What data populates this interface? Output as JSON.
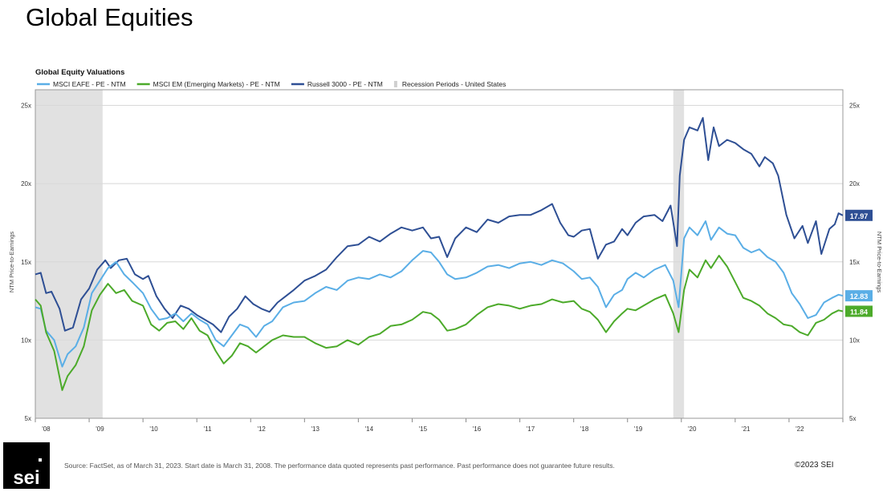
{
  "slide_title": "Global Equities",
  "footer": {
    "source": "Source: FactSet, as of March 31, 2023. Start date is March 31, 2008. The performance data quoted represents past performance. Past performance does not guarantee future results.",
    "copyright": "©2023 SEI",
    "logo_text": "sei"
  },
  "colors": {
    "eafe": "#5aaee6",
    "em": "#4caa2a",
    "russell": "#2e4f94",
    "recession": "#e1e1e1"
  },
  "chart_data": {
    "type": "line",
    "title": "Global Equity Valuations",
    "xlabel": "",
    "ylabel": "NTM Price-to-Earnings",
    "ylabel_right": "NTM Price-to-Earnings",
    "ylim": [
      5,
      26
    ],
    "yticks": [
      5,
      10,
      15,
      20,
      25
    ],
    "ytick_labels": [
      "5x",
      "10x",
      "15x",
      "20x",
      "25x"
    ],
    "xlim": [
      2008.0,
      2023.0
    ],
    "xticks": [
      2008.5,
      2009.5,
      2010.5,
      2011.5,
      2012.5,
      2013.5,
      2014.5,
      2015.5,
      2016.5,
      2017.5,
      2018.5,
      2019.5,
      2020.5,
      2021.5,
      2022.5
    ],
    "xtick_labels": [
      "'08",
      "'09",
      "'10",
      "'11",
      "'12",
      "'13",
      "'14",
      "'15",
      "'16",
      "'17",
      "'18",
      "'19",
      "'20",
      "'21",
      "'22"
    ],
    "grid": true,
    "legend_position": "top-left",
    "recessions": [
      [
        2008.0,
        2009.25
      ],
      [
        2019.85,
        2020.05
      ]
    ],
    "last_value_labels": [
      {
        "series": "Russell 3000 - PE - NTM",
        "text": "17.97"
      },
      {
        "series": "MSCI EAFE - PE - NTM",
        "text": "12.83"
      },
      {
        "series": "MSCI EM (Emerging Markets) - PE - NTM",
        "text": "11.84"
      }
    ],
    "legend": [
      {
        "label": "MSCI EAFE - PE - NTM",
        "color": "#5aaee6"
      },
      {
        "label": "MSCI EM (Emerging Markets) - PE - NTM",
        "color": "#4caa2a"
      },
      {
        "label": "Russell 3000 - PE - NTM",
        "color": "#2e4f94"
      },
      {
        "label": "Recession Periods - United States",
        "color": "#d0d0d0"
      }
    ],
    "series": [
      {
        "name": "Russell 3000 - PE - NTM",
        "color": "#2e4f94",
        "x": [
          2008.0,
          2008.1,
          2008.2,
          2008.3,
          2008.45,
          2008.55,
          2008.7,
          2008.85,
          2009.0,
          2009.15,
          2009.3,
          2009.4,
          2009.55,
          2009.7,
          2009.85,
          2010.0,
          2010.1,
          2010.25,
          2010.4,
          2010.55,
          2010.7,
          2010.85,
          2011.0,
          2011.15,
          2011.3,
          2011.45,
          2011.6,
          2011.75,
          2011.9,
          2012.05,
          2012.2,
          2012.35,
          2012.5,
          2012.65,
          2012.8,
          2013.0,
          2013.2,
          2013.4,
          2013.6,
          2013.8,
          2014.0,
          2014.2,
          2014.4,
          2014.6,
          2014.8,
          2015.0,
          2015.2,
          2015.35,
          2015.5,
          2015.65,
          2015.8,
          2016.0,
          2016.2,
          2016.4,
          2016.6,
          2016.8,
          2017.0,
          2017.2,
          2017.4,
          2017.6,
          2017.75,
          2017.9,
          2018.0,
          2018.15,
          2018.3,
          2018.45,
          2018.6,
          2018.75,
          2018.9,
          2019.0,
          2019.15,
          2019.3,
          2019.5,
          2019.65,
          2019.8,
          2019.92,
          2019.97,
          2020.05,
          2020.15,
          2020.3,
          2020.4,
          2020.5,
          2020.6,
          2020.7,
          2020.85,
          2021.0,
          2021.15,
          2021.3,
          2021.45,
          2021.55,
          2021.7,
          2021.8,
          2021.95,
          2022.1,
          2022.25,
          2022.35,
          2022.5,
          2022.6,
          2022.75,
          2022.85,
          2022.92,
          2023.0
        ],
        "values": [
          14.2,
          14.3,
          13.0,
          13.1,
          12.0,
          10.6,
          10.8,
          12.6,
          13.3,
          14.5,
          15.1,
          14.6,
          15.1,
          15.2,
          14.2,
          13.9,
          14.1,
          12.8,
          12.0,
          11.4,
          12.2,
          12.0,
          11.6,
          11.3,
          11.0,
          10.5,
          11.5,
          12.0,
          12.8,
          12.3,
          12.0,
          11.8,
          12.4,
          12.8,
          13.2,
          13.8,
          14.1,
          14.5,
          15.3,
          16.0,
          16.1,
          16.6,
          16.3,
          16.8,
          17.2,
          17.0,
          17.2,
          16.5,
          16.6,
          15.3,
          16.5,
          17.2,
          16.9,
          17.7,
          17.5,
          17.9,
          18.0,
          18.0,
          18.3,
          18.7,
          17.5,
          16.7,
          16.6,
          17.0,
          17.1,
          15.2,
          16.1,
          16.3,
          17.1,
          16.7,
          17.5,
          17.9,
          18.0,
          17.6,
          18.6,
          16.0,
          20.5,
          22.8,
          23.6,
          23.4,
          24.2,
          21.5,
          23.6,
          22.4,
          22.8,
          22.6,
          22.2,
          21.9,
          21.1,
          21.7,
          21.3,
          20.5,
          18.0,
          16.5,
          17.3,
          16.2,
          17.6,
          15.5,
          17.1,
          17.4,
          18.1,
          17.97
        ]
      },
      {
        "name": "MSCI EAFE - PE - NTM",
        "color": "#5aaee6",
        "x": [
          2008.0,
          2008.1,
          2008.2,
          2008.35,
          2008.5,
          2008.6,
          2008.75,
          2008.9,
          2009.05,
          2009.2,
          2009.35,
          2009.5,
          2009.65,
          2009.8,
          2010.0,
          2010.15,
          2010.3,
          2010.45,
          2010.6,
          2010.75,
          2010.9,
          2011.05,
          2011.2,
          2011.35,
          2011.5,
          2011.65,
          2011.8,
          2011.95,
          2012.1,
          2012.25,
          2012.4,
          2012.6,
          2012.8,
          2013.0,
          2013.2,
          2013.4,
          2013.6,
          2013.8,
          2014.0,
          2014.2,
          2014.4,
          2014.6,
          2014.8,
          2015.0,
          2015.2,
          2015.35,
          2015.5,
          2015.65,
          2015.8,
          2016.0,
          2016.2,
          2016.4,
          2016.6,
          2016.8,
          2017.0,
          2017.2,
          2017.4,
          2017.6,
          2017.8,
          2018.0,
          2018.15,
          2018.3,
          2018.45,
          2018.6,
          2018.75,
          2018.9,
          2019.0,
          2019.15,
          2019.3,
          2019.5,
          2019.7,
          2019.85,
          2019.95,
          2020.05,
          2020.15,
          2020.3,
          2020.45,
          2020.55,
          2020.7,
          2020.85,
          2021.0,
          2021.15,
          2021.3,
          2021.45,
          2021.6,
          2021.75,
          2021.9,
          2022.05,
          2022.2,
          2022.35,
          2022.5,
          2022.65,
          2022.8,
          2022.92,
          2023.0
        ],
        "values": [
          12.1,
          12.0,
          10.6,
          10.0,
          8.3,
          9.1,
          9.6,
          10.8,
          13.0,
          13.8,
          14.6,
          15.0,
          14.2,
          13.7,
          13.0,
          12.0,
          11.3,
          11.4,
          11.7,
          11.2,
          11.7,
          11.3,
          11.0,
          10.0,
          9.6,
          10.3,
          11.0,
          10.8,
          10.2,
          10.9,
          11.2,
          12.1,
          12.4,
          12.5,
          13.0,
          13.4,
          13.2,
          13.8,
          14.0,
          13.9,
          14.2,
          14.0,
          14.4,
          15.1,
          15.7,
          15.6,
          15.0,
          14.2,
          13.9,
          14.0,
          14.3,
          14.7,
          14.8,
          14.6,
          14.9,
          15.0,
          14.8,
          15.1,
          14.9,
          14.4,
          13.9,
          14.0,
          13.4,
          12.1,
          12.9,
          13.2,
          13.9,
          14.3,
          14.0,
          14.5,
          14.8,
          13.8,
          12.1,
          16.5,
          17.2,
          16.7,
          17.6,
          16.4,
          17.2,
          16.8,
          16.7,
          15.9,
          15.6,
          15.8,
          15.3,
          15.0,
          14.3,
          13.0,
          12.3,
          11.4,
          11.6,
          12.4,
          12.7,
          12.9,
          12.83
        ]
      },
      {
        "name": "MSCI EM (Emerging Markets) - PE - NTM",
        "color": "#4caa2a",
        "x": [
          2008.0,
          2008.1,
          2008.2,
          2008.35,
          2008.5,
          2008.6,
          2008.75,
          2008.9,
          2009.05,
          2009.2,
          2009.35,
          2009.5,
          2009.65,
          2009.8,
          2010.0,
          2010.15,
          2010.3,
          2010.45,
          2010.6,
          2010.75,
          2010.9,
          2011.05,
          2011.2,
          2011.35,
          2011.5,
          2011.65,
          2011.8,
          2011.95,
          2012.1,
          2012.25,
          2012.4,
          2012.6,
          2012.8,
          2013.0,
          2013.2,
          2013.4,
          2013.6,
          2013.8,
          2014.0,
          2014.2,
          2014.4,
          2014.6,
          2014.8,
          2015.0,
          2015.2,
          2015.35,
          2015.5,
          2015.65,
          2015.8,
          2016.0,
          2016.2,
          2016.4,
          2016.6,
          2016.8,
          2017.0,
          2017.2,
          2017.4,
          2017.6,
          2017.8,
          2018.0,
          2018.15,
          2018.3,
          2018.45,
          2018.6,
          2018.75,
          2018.9,
          2019.0,
          2019.15,
          2019.3,
          2019.5,
          2019.7,
          2019.85,
          2019.95,
          2020.05,
          2020.15,
          2020.3,
          2020.45,
          2020.55,
          2020.7,
          2020.85,
          2021.0,
          2021.15,
          2021.3,
          2021.45,
          2021.6,
          2021.75,
          2021.9,
          2022.05,
          2022.2,
          2022.35,
          2022.5,
          2022.65,
          2022.8,
          2022.92,
          2023.0
        ],
        "values": [
          12.6,
          12.2,
          10.5,
          9.3,
          6.8,
          7.7,
          8.4,
          9.6,
          11.9,
          12.9,
          13.6,
          13.0,
          13.2,
          12.5,
          12.2,
          11.0,
          10.6,
          11.1,
          11.2,
          10.7,
          11.4,
          10.6,
          10.3,
          9.3,
          8.5,
          9.0,
          9.8,
          9.6,
          9.2,
          9.6,
          10.0,
          10.3,
          10.2,
          10.2,
          9.8,
          9.5,
          9.6,
          10.0,
          9.7,
          10.2,
          10.4,
          10.9,
          11.0,
          11.3,
          11.8,
          11.7,
          11.3,
          10.6,
          10.7,
          11.0,
          11.6,
          12.1,
          12.3,
          12.2,
          12.0,
          12.2,
          12.3,
          12.6,
          12.4,
          12.5,
          12.0,
          11.8,
          11.3,
          10.5,
          11.2,
          11.7,
          12.0,
          11.9,
          12.2,
          12.6,
          12.9,
          11.7,
          10.5,
          13.2,
          14.5,
          14.0,
          15.1,
          14.6,
          15.4,
          14.7,
          13.7,
          12.7,
          12.5,
          12.2,
          11.7,
          11.4,
          11.0,
          10.9,
          10.5,
          10.3,
          11.1,
          11.3,
          11.7,
          11.9,
          11.84
        ]
      }
    ]
  }
}
